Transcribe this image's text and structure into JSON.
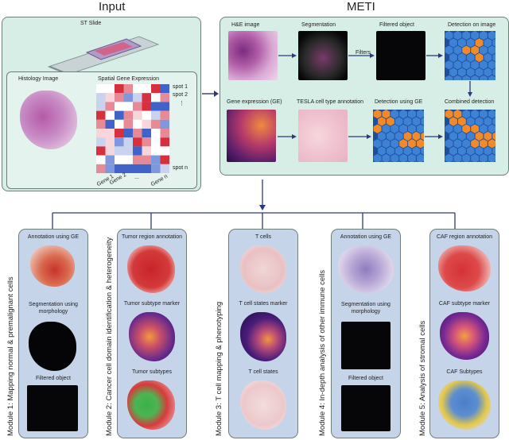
{
  "input": {
    "title": "Input",
    "st_slide": "ST Slide",
    "histology": "Histology Image",
    "spatial": "Spatial Gene Expression",
    "spots": [
      "spot 1",
      "spot 2",
      "⋮",
      "spot n"
    ],
    "genes": [
      "Gene 1",
      "Gene 2",
      "...",
      "Gene n"
    ]
  },
  "meti": {
    "title": "METI",
    "he": "H&E image",
    "seg": "Segmentation",
    "filtered": "Filtered object",
    "det_img": "Detection on image",
    "filters": "Filters",
    "ge": "Gene expression (GE)",
    "tesla": "TESLA cell type annotation",
    "det_ge": "Detection using GE",
    "combined": "Combined detection"
  },
  "modules": [
    {
      "title": "Module 1: Mapping normal & premalignant cells",
      "labels": [
        "Annotation using GE",
        "Segmentation using morphology",
        "Filtered object"
      ]
    },
    {
      "title": "Module 2: Cancer cell domain identification & heterogeneity",
      "labels": [
        "Tumor region annotation",
        "Tumor subtype marker",
        "Tumor subtypes"
      ]
    },
    {
      "title": "Module 3: T cell mapping & phenotyping",
      "labels": [
        "T cells",
        "T cell states marker",
        "T cell states"
      ]
    },
    {
      "title": "Module 4: In-depth analysis of other immune cells",
      "labels": [
        "Annotation using GE",
        "Segmentation using morphology",
        "Filtered object"
      ]
    },
    {
      "title": "Module 5: Analysis of stromal cells",
      "labels": [
        "CAF region annotation",
        "CAF subtype marker",
        "CAF Subtypes"
      ]
    }
  ],
  "colors": {
    "panel": "#d7eee6",
    "module": "#c6d4ea",
    "arrow": "#2b3a7a",
    "heat_red": "#d6303e",
    "heat_blue": "#3f63c8"
  }
}
